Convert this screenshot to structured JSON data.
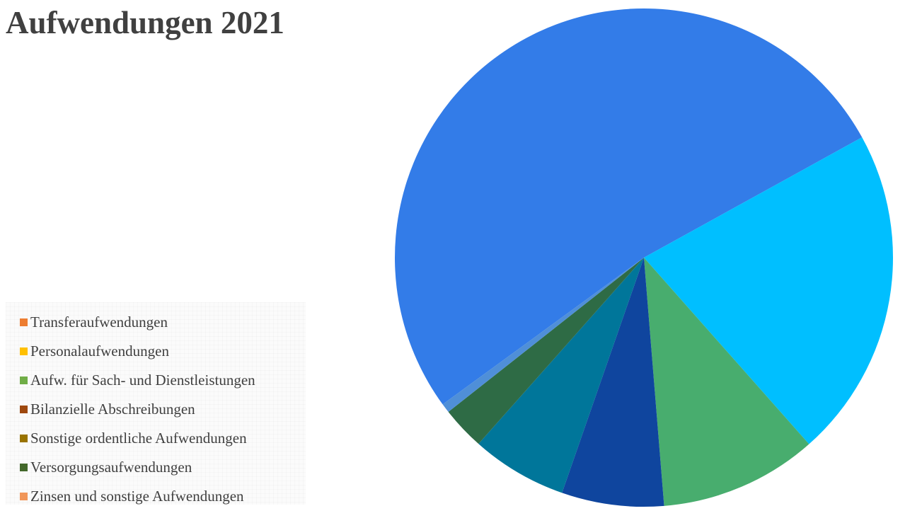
{
  "chart_data": {
    "type": "pie",
    "title": "Aufwendungen 2021",
    "legend_position": "left-bottom",
    "legend": [
      {
        "label": "Transferaufwendungen",
        "color": "#ed7d31"
      },
      {
        "label": "Personalaufwendungen",
        "color": "#ffc000"
      },
      {
        "label": "Aufw. für Sach- und Dienstleistungen",
        "color": "#70ad47"
      },
      {
        "label": "Bilanzielle Abschreibungen",
        "color": "#9e480e"
      },
      {
        "label": "Sonstige ordentliche Aufwendungen",
        "color": "#997300"
      },
      {
        "label": "Versorgungsaufwendungen",
        "color": "#43682b"
      },
      {
        "label": "Zinsen und sonstige Aufwendungen",
        "color": "#f1975a"
      }
    ],
    "slices": [
      {
        "value": 51.8,
        "color": "#337ce8"
      },
      {
        "value": 21.4,
        "color": "#00bfff"
      },
      {
        "value": 10.2,
        "color": "#48ad6e"
      },
      {
        "value": 6.6,
        "color": "#0f459e"
      },
      {
        "value": 6.2,
        "color": "#00769a"
      },
      {
        "value": 2.8,
        "color": "#2e6b45"
      },
      {
        "value": 0.6,
        "color": "#4f8fd8"
      }
    ]
  }
}
